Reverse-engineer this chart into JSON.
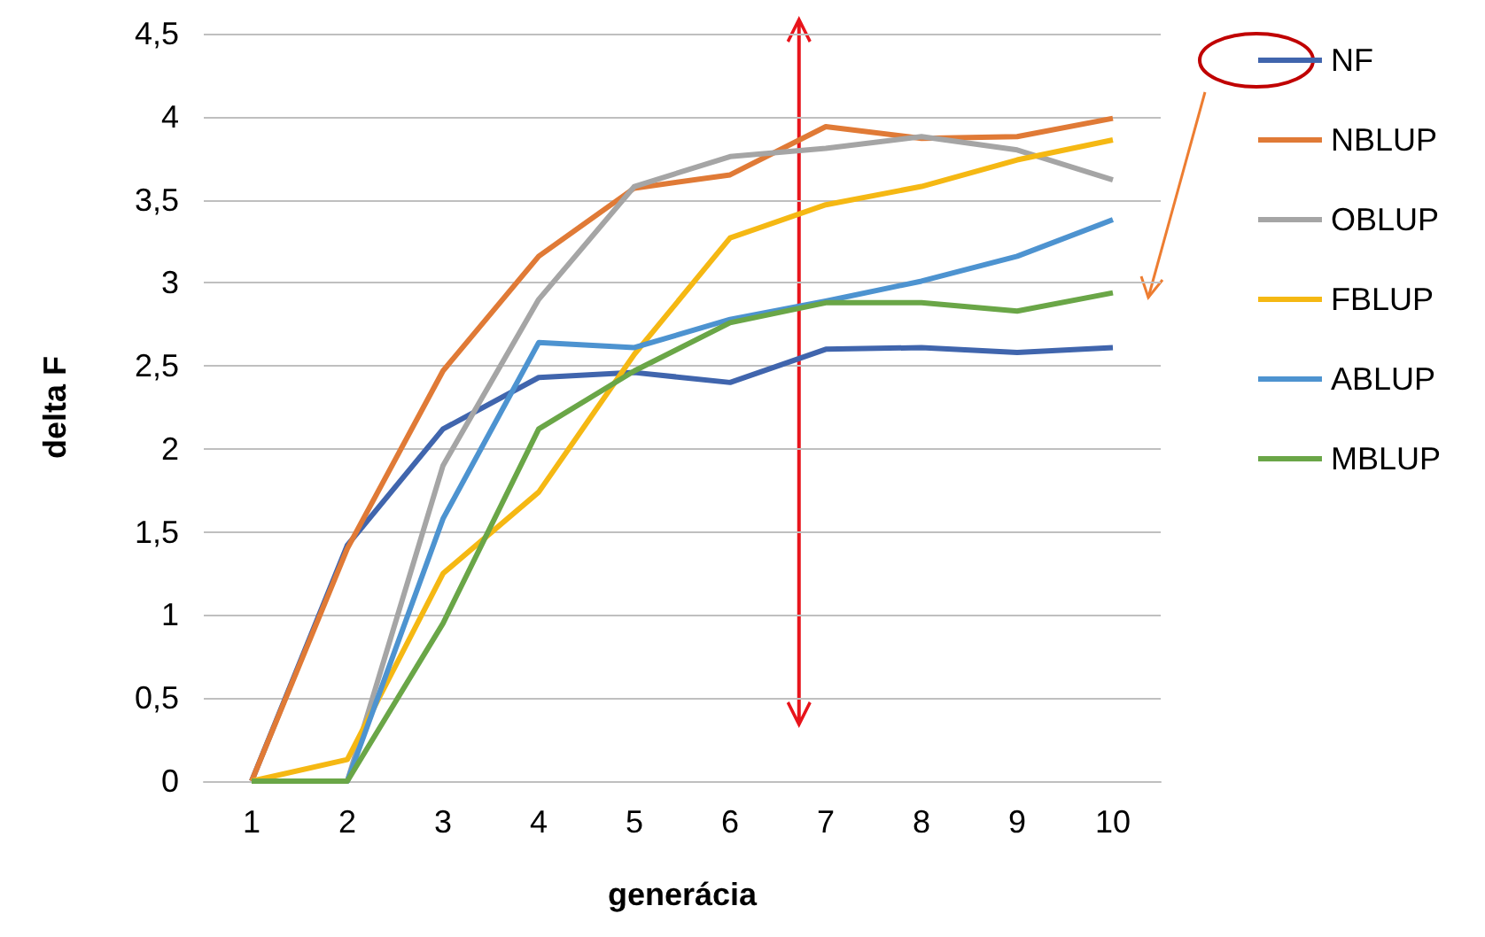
{
  "chart_data": {
    "type": "line",
    "xlabel": "generácia",
    "ylabel": "delta F",
    "categories": [
      "1",
      "2",
      "3",
      "4",
      "5",
      "6",
      "7",
      "8",
      "9",
      "10"
    ],
    "series": [
      {
        "name": "NF",
        "color": "#4065ad",
        "values": [
          0,
          1.42,
          2.12,
          2.43,
          2.46,
          2.4,
          2.6,
          2.61,
          2.58,
          2.61
        ]
      },
      {
        "name": "NBLUP",
        "color": "#e07a36",
        "values": [
          0,
          1.4,
          2.47,
          3.16,
          3.57,
          3.65,
          3.94,
          3.87,
          3.88,
          3.99
        ]
      },
      {
        "name": "OBLUP",
        "color": "#a5a5a5",
        "values": [
          0,
          0,
          1.9,
          2.9,
          3.58,
          3.76,
          3.81,
          3.88,
          3.8,
          3.62
        ]
      },
      {
        "name": "FBLUP",
        "color": "#f5b813",
        "values": [
          0,
          0.13,
          1.25,
          1.74,
          2.57,
          3.27,
          3.47,
          3.58,
          3.74,
          3.86
        ]
      },
      {
        "name": "ABLUP",
        "color": "#4d93d0",
        "values": [
          0,
          0,
          1.58,
          2.64,
          2.61,
          2.78,
          2.89,
          3.01,
          3.16,
          3.38
        ]
      },
      {
        "name": "MBLUP",
        "color": "#6aa647",
        "values": [
          0,
          0,
          0.95,
          2.12,
          2.47,
          2.76,
          2.88,
          2.88,
          2.83,
          2.94
        ]
      }
    ],
    "ylim": [
      0,
      4.5
    ],
    "yticks": [
      0,
      {
        "value": 0.5,
        "label": "0,5"
      },
      1,
      {
        "value": 1.5,
        "label": "1,5"
      },
      2,
      {
        "value": 2.5,
        "label": "2,5"
      },
      3,
      {
        "value": 3.5,
        "label": "3,5"
      },
      4,
      {
        "value": 4.5,
        "label": "4,5"
      }
    ],
    "grid": "y",
    "legend": "right",
    "marker": "none",
    "line_style": "solid"
  }
}
